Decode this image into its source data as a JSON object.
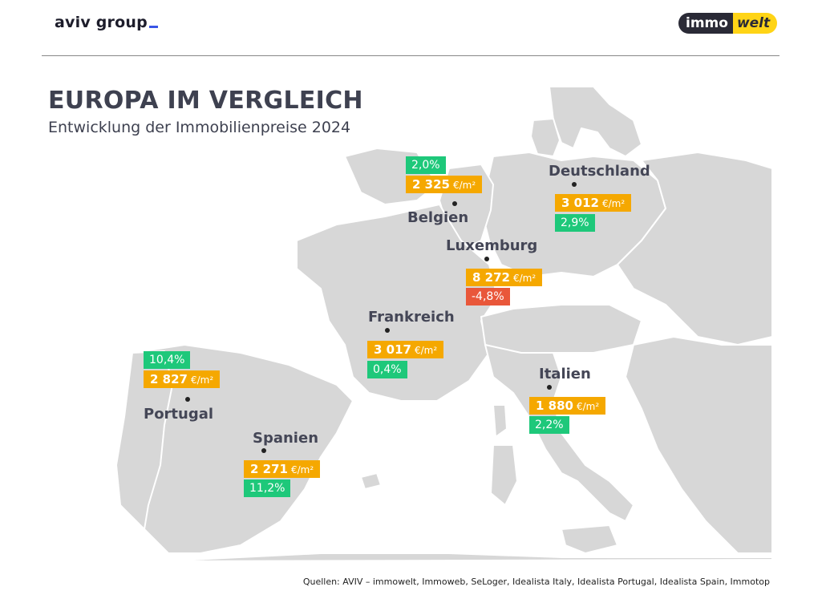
{
  "header": {
    "brand_left": "aviv group",
    "brand_right_a": "immo",
    "brand_right_b": "welt"
  },
  "title": "EUROPA IM VERGLEICH",
  "subtitle": "Entwicklung der Immobilienpreise 2024",
  "unit": "€/m²",
  "countries": {
    "deutschland": {
      "name": "Deutschland",
      "price": "3 012",
      "change": "2,9%"
    },
    "belgien": {
      "name": "Belgien",
      "price": "2 325",
      "change": "2,0%"
    },
    "luxemburg": {
      "name": "Luxemburg",
      "price": "8 272",
      "change": "-4,8%"
    },
    "frankreich": {
      "name": "Frankreich",
      "price": "3 017",
      "change": "0,4%"
    },
    "portugal": {
      "name": "Portugal",
      "price": "2 827",
      "change": "10,4%"
    },
    "spanien": {
      "name": "Spanien",
      "price": "2 271",
      "change": "11,2%"
    },
    "italien": {
      "name": "Italien",
      "price": "1 880",
      "change": "2,2%"
    }
  },
  "colors": {
    "price_badge": "#f5a800",
    "positive_badge": "#1ec87a",
    "negative_badge": "#e9573a",
    "land": "#d7d7d7",
    "borders": "#ffffff"
  },
  "source": "Quellen: AVIV – immowelt, Immoweb, SeLoger, Idealista Italy, Idealista Portugal, Idealista Spain, Immotop"
}
